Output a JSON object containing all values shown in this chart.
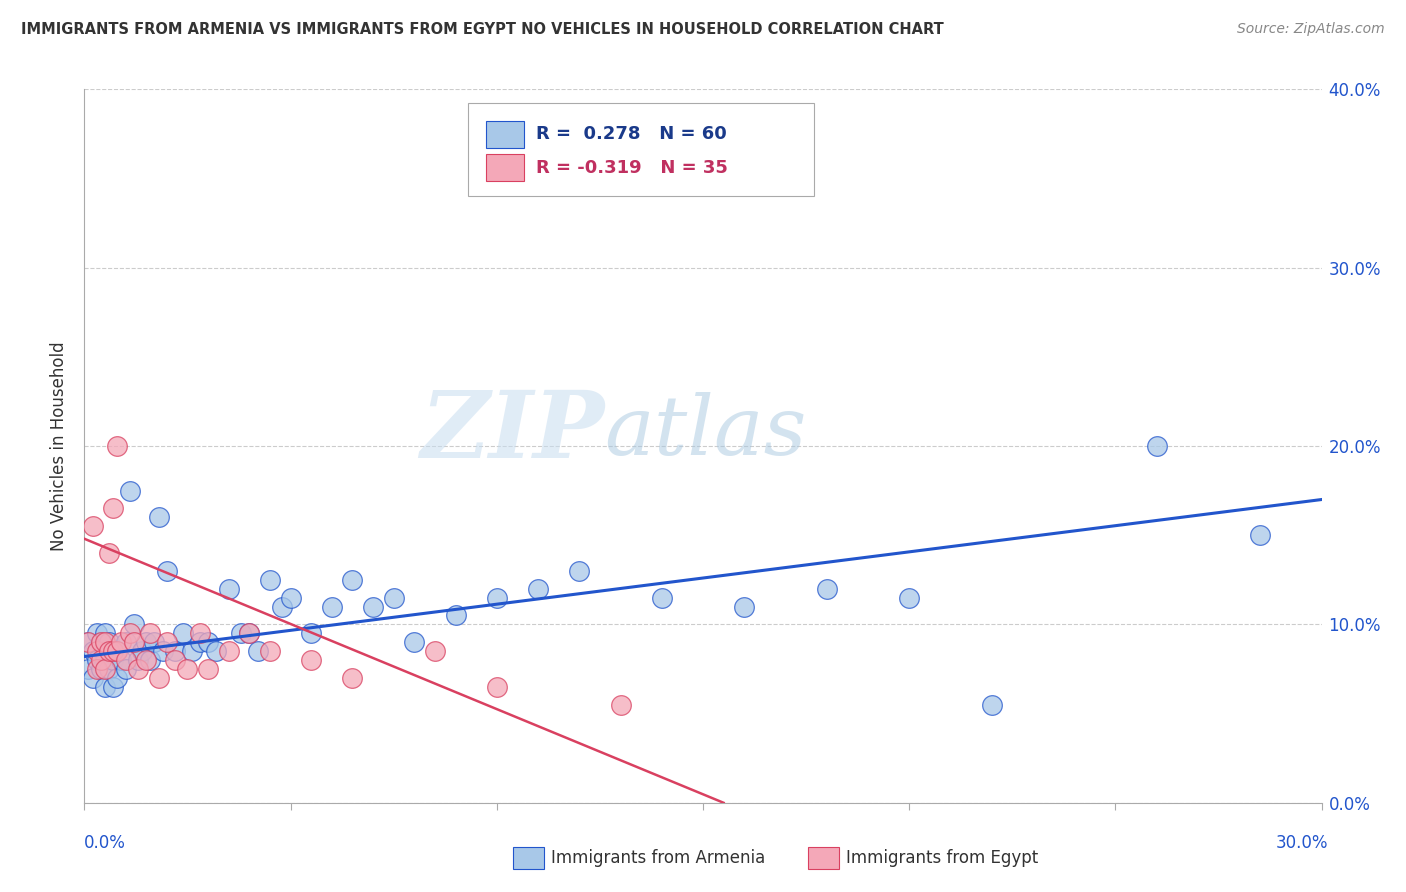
{
  "title": "IMMIGRANTS FROM ARMENIA VS IMMIGRANTS FROM EGYPT NO VEHICLES IN HOUSEHOLD CORRELATION CHART",
  "source": "Source: ZipAtlas.com",
  "ylabel": "No Vehicles in Household",
  "x_min": 0.0,
  "x_max": 0.3,
  "y_min": 0.0,
  "y_max": 0.4,
  "r_armenia": 0.278,
  "n_armenia": 60,
  "r_egypt": -0.319,
  "n_egypt": 35,
  "color_armenia": "#a8c8e8",
  "color_egypt": "#f4a8b8",
  "trendline_armenia": "#2255cc",
  "trendline_egypt": "#d94060",
  "watermark_zip": "ZIP",
  "watermark_atlas": "atlas",
  "legend_label_armenia": "Immigrants from Armenia",
  "legend_label_egypt": "Immigrants from Egypt",
  "armenia_x": [
    0.001,
    0.001,
    0.002,
    0.002,
    0.003,
    0.003,
    0.004,
    0.004,
    0.005,
    0.005,
    0.005,
    0.006,
    0.006,
    0.007,
    0.007,
    0.008,
    0.008,
    0.009,
    0.01,
    0.01,
    0.011,
    0.012,
    0.013,
    0.014,
    0.015,
    0.016,
    0.017,
    0.018,
    0.019,
    0.02,
    0.022,
    0.024,
    0.026,
    0.028,
    0.03,
    0.032,
    0.035,
    0.038,
    0.04,
    0.042,
    0.045,
    0.048,
    0.05,
    0.055,
    0.06,
    0.065,
    0.07,
    0.075,
    0.08,
    0.09,
    0.1,
    0.11,
    0.12,
    0.14,
    0.16,
    0.18,
    0.2,
    0.22,
    0.26,
    0.285
  ],
  "armenia_y": [
    0.09,
    0.075,
    0.085,
    0.07,
    0.095,
    0.08,
    0.09,
    0.075,
    0.095,
    0.08,
    0.065,
    0.09,
    0.075,
    0.08,
    0.065,
    0.085,
    0.07,
    0.08,
    0.09,
    0.075,
    0.175,
    0.1,
    0.08,
    0.085,
    0.09,
    0.08,
    0.09,
    0.16,
    0.085,
    0.13,
    0.085,
    0.095,
    0.085,
    0.09,
    0.09,
    0.085,
    0.12,
    0.095,
    0.095,
    0.085,
    0.125,
    0.11,
    0.115,
    0.095,
    0.11,
    0.125,
    0.11,
    0.115,
    0.09,
    0.105,
    0.115,
    0.12,
    0.13,
    0.115,
    0.11,
    0.12,
    0.115,
    0.055,
    0.2,
    0.15
  ],
  "egypt_x": [
    0.001,
    0.002,
    0.003,
    0.003,
    0.004,
    0.004,
    0.005,
    0.005,
    0.006,
    0.006,
    0.007,
    0.007,
    0.008,
    0.008,
    0.009,
    0.01,
    0.011,
    0.012,
    0.013,
    0.015,
    0.016,
    0.018,
    0.02,
    0.022,
    0.025,
    0.028,
    0.03,
    0.035,
    0.04,
    0.045,
    0.055,
    0.065,
    0.085,
    0.1,
    0.13
  ],
  "egypt_y": [
    0.09,
    0.155,
    0.085,
    0.075,
    0.09,
    0.08,
    0.09,
    0.075,
    0.14,
    0.085,
    0.165,
    0.085,
    0.2,
    0.085,
    0.09,
    0.08,
    0.095,
    0.09,
    0.075,
    0.08,
    0.095,
    0.07,
    0.09,
    0.08,
    0.075,
    0.095,
    0.075,
    0.085,
    0.095,
    0.085,
    0.08,
    0.07,
    0.085,
    0.065,
    0.055
  ],
  "trendline_armenia_x0": 0.0,
  "trendline_armenia_y0": 0.082,
  "trendline_armenia_x1": 0.3,
  "trendline_armenia_y1": 0.17,
  "trendline_egypt_x0": 0.0,
  "trendline_egypt_y0": 0.148,
  "trendline_egypt_x1": 0.155,
  "trendline_egypt_y1": 0.0
}
